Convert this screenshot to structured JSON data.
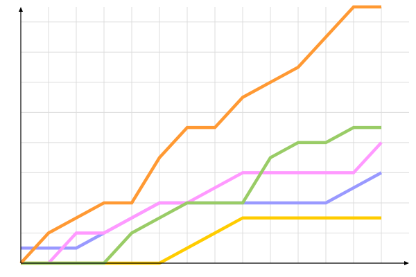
{
  "chart_data": {
    "type": "line",
    "title": "",
    "xlabel": "",
    "ylabel": "",
    "x": [
      0,
      1,
      2,
      3,
      4,
      5,
      6,
      7,
      8,
      9,
      10,
      11,
      12,
      13
    ],
    "xlim": [
      0,
      13
    ],
    "ylim": [
      0,
      17
    ],
    "y_grid_step": 2,
    "grid": true,
    "legend": "none",
    "series": [
      {
        "color": "#ffcc00",
        "values": [
          0,
          0,
          0,
          0,
          0,
          0,
          1,
          2,
          3,
          3,
          3,
          3,
          3,
          3
        ]
      },
      {
        "color": "#9999ff",
        "values": [
          1,
          1,
          1,
          2,
          3,
          4,
          4,
          4,
          4,
          4,
          4,
          4,
          5,
          6
        ]
      },
      {
        "color": "#ff99ff",
        "values": [
          null,
          0,
          2,
          2,
          3,
          4,
          4,
          5,
          6,
          6,
          6,
          6,
          6,
          8
        ]
      },
      {
        "color": "#99cc66",
        "values": [
          0,
          0,
          0,
          0,
          2,
          3,
          4,
          4,
          4,
          7,
          8,
          8,
          9,
          9
        ]
      },
      {
        "color": "#ff9933",
        "values": [
          0,
          2,
          3,
          4,
          4,
          7,
          9,
          9,
          11,
          12,
          13,
          15,
          17,
          17
        ]
      }
    ]
  }
}
